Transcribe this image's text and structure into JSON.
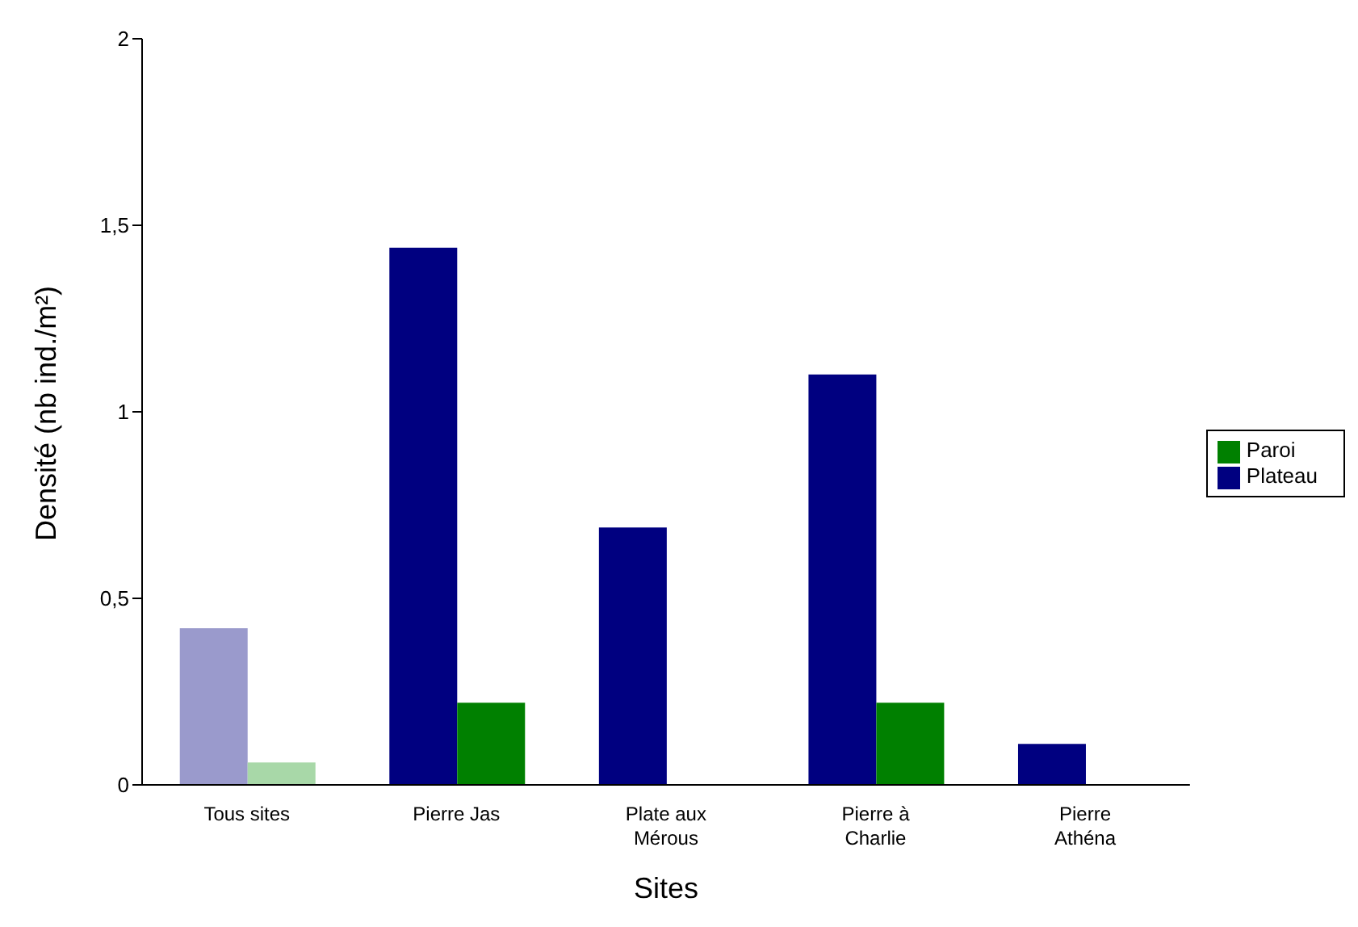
{
  "chart_data": {
    "type": "bar",
    "xlabel": "Sites",
    "ylabel": "Densité (nb ind./m²)",
    "categories": [
      "Tous sites",
      "Pierre Jas",
      "Plate aux Mérous",
      "Pierre à Charlie",
      "Pierre Athéna"
    ],
    "series": [
      {
        "name": "Plateau",
        "color": "#000080",
        "colors": [
          "#9a9acc",
          "#000080",
          "#000080",
          "#000080",
          "#000080"
        ],
        "values": [
          0.42,
          1.44,
          0.69,
          1.1,
          0.11
        ]
      },
      {
        "name": "Paroi",
        "color": "#008000",
        "colors": [
          "#a8d8a8",
          "#008000",
          "#008000",
          "#008000",
          "#008000"
        ],
        "values": [
          0.06,
          0.22,
          0,
          0.22,
          0
        ]
      }
    ],
    "ylim": [
      0,
      2
    ],
    "yticks": [
      0,
      {
        "value": 0.5,
        "label": "0,5"
      },
      1,
      {
        "value": 1.5,
        "label": "1,5"
      },
      2
    ],
    "grid": false,
    "legend": "right"
  }
}
